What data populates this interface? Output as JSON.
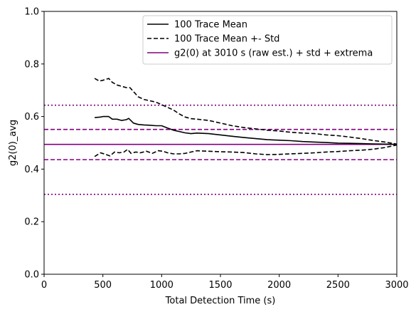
{
  "chart_data": {
    "type": "line",
    "xlabel": "Total Detection Time (s)",
    "ylabel": "g2(0)_avg",
    "xlim": [
      0,
      3000
    ],
    "ylim": [
      0,
      1.0
    ],
    "x_ticks": [
      0,
      500,
      1000,
      1500,
      2000,
      2500,
      3000
    ],
    "y_ticks": [
      0.0,
      0.2,
      0.4,
      0.6,
      0.8,
      1.0
    ],
    "x_tick_labels": [
      "0",
      "500",
      "1000",
      "1500",
      "2000",
      "2500",
      "3000"
    ],
    "y_tick_labels": [
      "0.0",
      "0.2",
      "0.4",
      "0.6",
      "0.8",
      "1.0"
    ],
    "grid": false,
    "legend_position": "top-right",
    "legend": [
      {
        "label": "100 Trace Mean",
        "color": "#000000",
        "style": "solid"
      },
      {
        "label": "100 Trace Mean +- Std",
        "color": "#000000",
        "style": "dashed"
      },
      {
        "label": "g2(0) at 3010 s (raw est.) + std + extrema",
        "color": "#800080",
        "style": "solid"
      }
    ],
    "series": [
      {
        "name": "100 Trace Mean",
        "color": "#000000",
        "style": "solid",
        "x": [
          430,
          480,
          500,
          550,
          580,
          620,
          660,
          700,
          720,
          760,
          800,
          850,
          900,
          950,
          1000,
          1050,
          1100,
          1150,
          1200,
          1250,
          1300,
          1400,
          1500,
          1600,
          1700,
          1800,
          1900,
          2000,
          2100,
          2200,
          2300,
          2400,
          2500,
          2600,
          2700,
          2800,
          2900,
          3000
        ],
        "y": [
          0.596,
          0.598,
          0.6,
          0.6,
          0.59,
          0.59,
          0.585,
          0.588,
          0.593,
          0.575,
          0.57,
          0.568,
          0.567,
          0.565,
          0.565,
          0.556,
          0.548,
          0.543,
          0.538,
          0.535,
          0.537,
          0.535,
          0.53,
          0.525,
          0.52,
          0.516,
          0.512,
          0.51,
          0.508,
          0.505,
          0.503,
          0.501,
          0.499,
          0.498,
          0.497,
          0.496,
          0.495,
          0.494
        ]
      },
      {
        "name": "100 Trace Mean +- Std (upper)",
        "color": "#000000",
        "style": "dashed",
        "x": [
          430,
          470,
          500,
          550,
          580,
          620,
          660,
          700,
          730,
          760,
          800,
          850,
          900,
          950,
          1000,
          1050,
          1100,
          1150,
          1200,
          1250,
          1300,
          1400,
          1500,
          1600,
          1700,
          1800,
          1900,
          2000,
          2100,
          2200,
          2300,
          2400,
          2500,
          2600,
          2700,
          2800,
          2900,
          3000
        ],
        "y": [
          0.745,
          0.735,
          0.738,
          0.745,
          0.73,
          0.72,
          0.715,
          0.71,
          0.71,
          0.695,
          0.675,
          0.665,
          0.66,
          0.655,
          0.645,
          0.635,
          0.625,
          0.61,
          0.598,
          0.592,
          0.59,
          0.585,
          0.575,
          0.565,
          0.558,
          0.553,
          0.548,
          0.545,
          0.54,
          0.537,
          0.535,
          0.53,
          0.527,
          0.522,
          0.516,
          0.509,
          0.503,
          0.495
        ]
      },
      {
        "name": "100 Trace Mean +- Std (lower)",
        "color": "#000000",
        "style": "dashed",
        "x": [
          430,
          480,
          530,
          560,
          600,
          640,
          680,
          710,
          740,
          780,
          820,
          870,
          920,
          970,
          1010,
          1050,
          1100,
          1150,
          1200,
          1250,
          1300,
          1400,
          1500,
          1600,
          1700,
          1800,
          1900,
          2000,
          2100,
          2200,
          2300,
          2400,
          2500,
          2600,
          2700,
          2800,
          2900,
          3000
        ],
        "y": [
          0.448,
          0.462,
          0.455,
          0.45,
          0.465,
          0.462,
          0.465,
          0.475,
          0.46,
          0.465,
          0.462,
          0.468,
          0.46,
          0.47,
          0.468,
          0.462,
          0.458,
          0.458,
          0.46,
          0.465,
          0.47,
          0.468,
          0.466,
          0.465,
          0.463,
          0.458,
          0.455,
          0.456,
          0.458,
          0.46,
          0.462,
          0.465,
          0.467,
          0.47,
          0.472,
          0.476,
          0.482,
          0.492
        ]
      }
    ],
    "reference_lines": [
      {
        "name": "g2(0) raw est.",
        "y": 0.494,
        "color": "#800080",
        "style": "solid"
      },
      {
        "name": "+ std",
        "y": 0.551,
        "color": "#800080",
        "style": "dashed"
      },
      {
        "name": "- std",
        "y": 0.436,
        "color": "#800080",
        "style": "dashed"
      },
      {
        "name": "max extremum",
        "y": 0.643,
        "color": "#800080",
        "style": "dotted"
      },
      {
        "name": "min extremum",
        "y": 0.304,
        "color": "#800080",
        "style": "dotted"
      }
    ]
  }
}
